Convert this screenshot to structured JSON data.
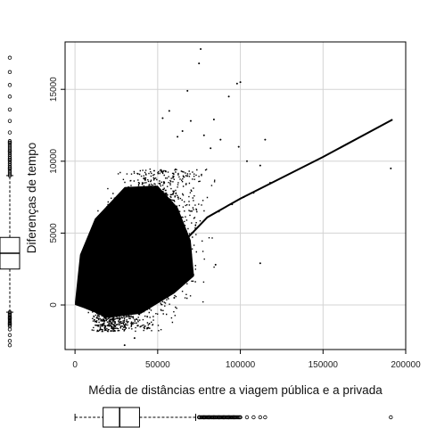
{
  "chart_data": {
    "type": "scatter",
    "title": "",
    "xlabel": "Média de distâncias entre a viagem pública e a privada",
    "ylabel": "Diferenças de tempo",
    "xlim": [
      -6000,
      200000
    ],
    "ylim": [
      -3100,
      18300
    ],
    "x_ticks": [
      0,
      50000,
      100000,
      150000,
      200000
    ],
    "x_tick_labels": [
      "0",
      "50000",
      "100000",
      "150000",
      "200000"
    ],
    "y_ticks": [
      0,
      5000,
      10000,
      15000
    ],
    "y_tick_labels": [
      "0",
      "5000",
      "10000",
      "15000"
    ],
    "grid": true,
    "point_color": "#000000",
    "grid_color": "#d3d3d3",
    "cloud": {
      "description_free": true,
      "main_center": [
        35000,
        4000
      ],
      "spread": [
        18000,
        1600
      ],
      "slope": 0.055
    },
    "outliers": [
      [
        76000,
        17800
      ],
      [
        75000,
        16800
      ],
      [
        100000,
        15500
      ],
      [
        98000,
        15400
      ],
      [
        68000,
        14900
      ],
      [
        93000,
        14500
      ],
      [
        57000,
        13500
      ],
      [
        53000,
        13000
      ],
      [
        70000,
        12800
      ],
      [
        84000,
        12900
      ],
      [
        65000,
        12100
      ],
      [
        62000,
        11700
      ],
      [
        78000,
        11800
      ],
      [
        88000,
        11500
      ],
      [
        115000,
        11500
      ],
      [
        82000,
        10900
      ],
      [
        99000,
        11000
      ],
      [
        104000,
        10000
      ],
      [
        112000,
        9700
      ],
      [
        118000,
        8500
      ],
      [
        108000,
        7800
      ],
      [
        102000,
        7500
      ],
      [
        95000,
        7000
      ],
      [
        87000,
        6500
      ],
      [
        112000,
        2900
      ],
      [
        85000,
        2800
      ],
      [
        60000,
        500
      ],
      [
        45000,
        -1300
      ],
      [
        36000,
        -2300
      ],
      [
        30000,
        -2800
      ],
      [
        22000,
        -1500
      ],
      [
        191000,
        9500
      ]
    ],
    "trend_line": [
      [
        41000,
        2200
      ],
      [
        60000,
        3700
      ],
      [
        80000,
        6100
      ],
      [
        100000,
        7400
      ],
      [
        150000,
        10300
      ],
      [
        192000,
        12900
      ]
    ],
    "x_boxplot": {
      "min": 0,
      "q1": 17000,
      "median": 27000,
      "q3": 39000,
      "whisker_max": 73000,
      "outliers": [
        75000,
        78000,
        81000,
        84000,
        87000,
        90000,
        93000,
        96000,
        100000,
        104000,
        108000,
        112000,
        115000,
        191000
      ]
    },
    "y_boxplot": {
      "whisker_min": -500,
      "q1": 2500,
      "median": 3600,
      "q3": 4700,
      "whisker_max": 9000,
      "outliers_low": [
        -900,
        -1300,
        -1700,
        -2100,
        -2500,
        -2800
      ],
      "outliers_high": [
        9500,
        10100,
        10700,
        11300,
        12000,
        12800,
        13600,
        14500,
        15300,
        16200,
        17200
      ]
    }
  }
}
